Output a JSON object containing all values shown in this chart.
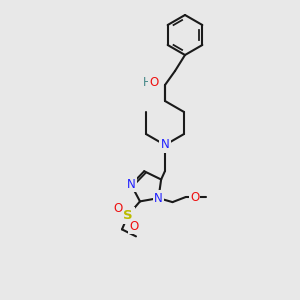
{
  "bg_color": "#e8e8e8",
  "bond_color": "#1a1a1a",
  "bond_width": 1.5,
  "N_color": "#2020ff",
  "O_color": "#ee1111",
  "S_color": "#bbbb00",
  "H_color": "#448888",
  "font_size": 8.5,
  "figsize": [
    3.0,
    3.0
  ],
  "dpi": 100,
  "xlim": [
    0,
    300
  ],
  "ylim": [
    0,
    300
  ]
}
